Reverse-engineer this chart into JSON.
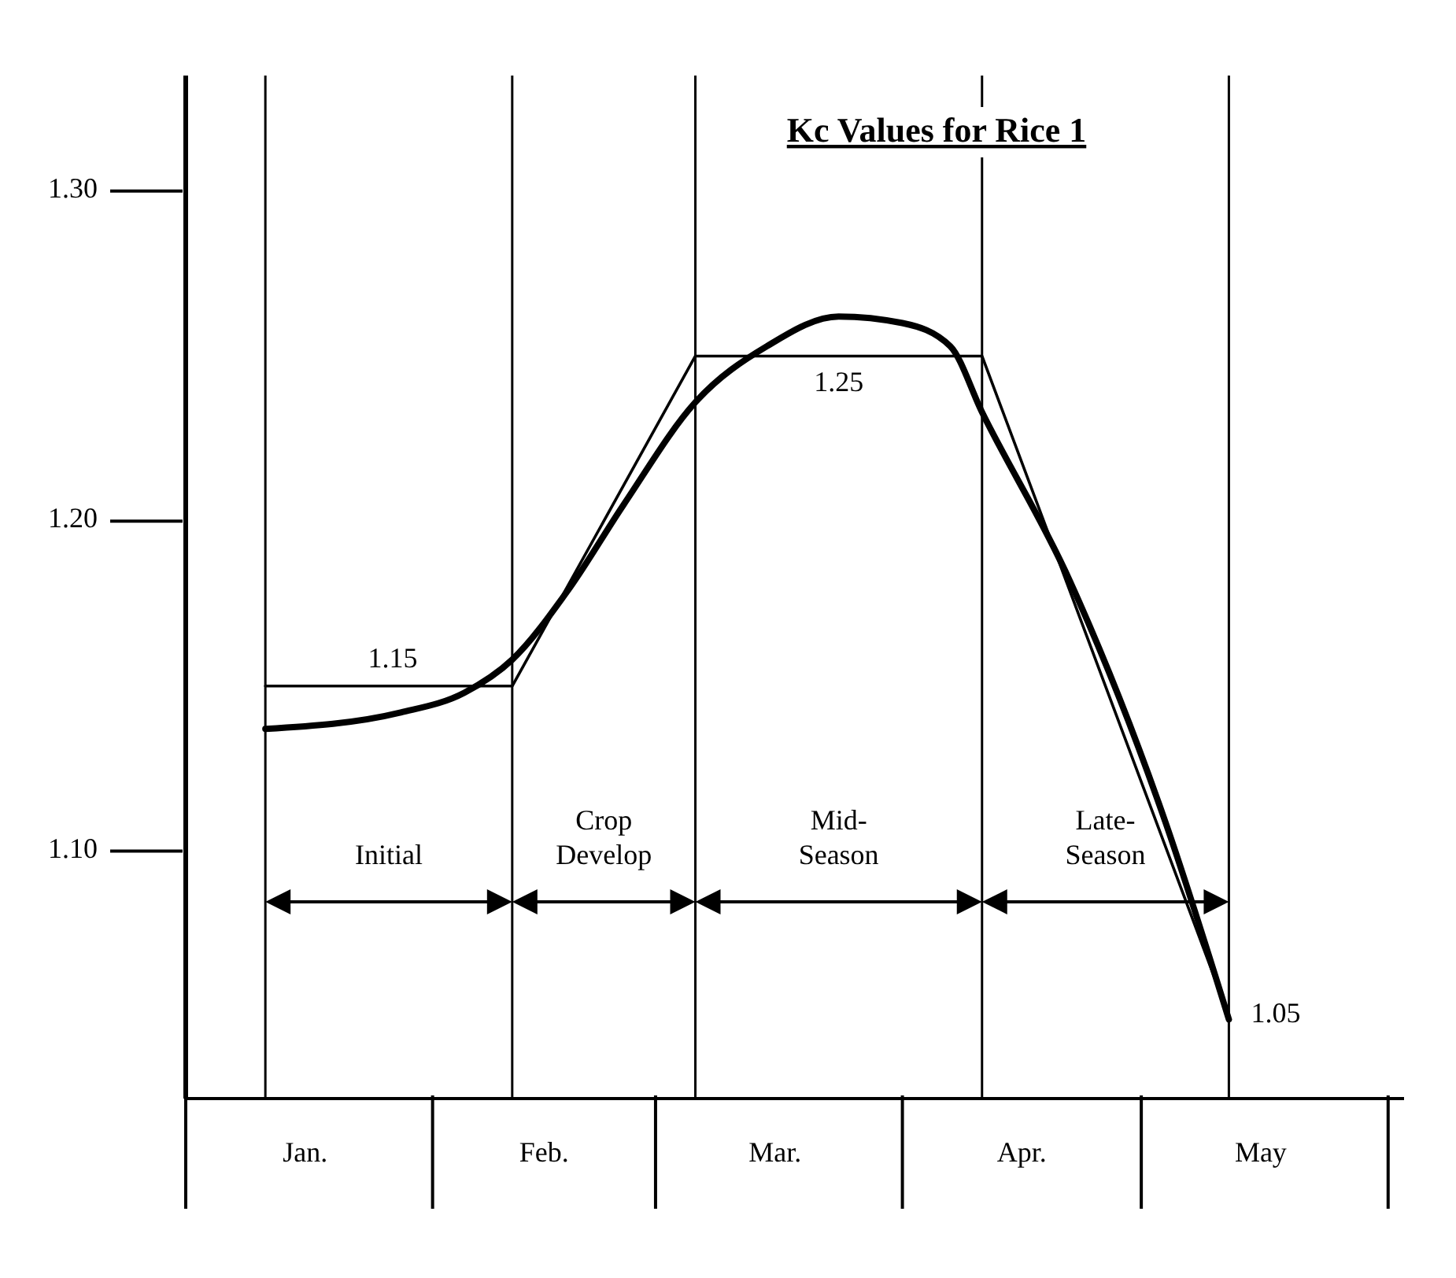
{
  "chart_data": {
    "type": "line",
    "title": "Kc Values for Rice 1",
    "xlim": [
      "--01-01",
      "--06-03"
    ],
    "xticks": [
      {
        "value": "--01-01",
        "label": null
      },
      {
        "value": "--01-16",
        "label": "Jan."
      },
      {
        "value": "--02-01",
        "label": null
      },
      {
        "value": "--02-15",
        "label": "Feb."
      },
      {
        "value": "--03-01",
        "label": null
      },
      {
        "value": "--03-16",
        "label": "Mar."
      },
      {
        "value": "--04-01",
        "label": null
      },
      {
        "value": "--04-16",
        "label": "Apr."
      },
      {
        "value": "--05-01",
        "label": null
      },
      {
        "value": "--05-16",
        "label": "May"
      },
      {
        "value": "--06-01",
        "label": null
      }
    ],
    "ylim": [
      1.025,
      1.335
    ],
    "yticks": [
      {
        "value": 1.1,
        "label": "1.10"
      },
      {
        "value": 1.2,
        "label": "1.20"
      },
      {
        "value": 1.3,
        "label": "1.30"
      }
    ],
    "grid": false,
    "marker": "none",
    "line_style": "solid",
    "series": [
      {
        "type": "line",
        "color": "#000000",
        "x": [
          "--01-11",
          "--02-11",
          "--03-06",
          "--04-11",
          "--05-12"
        ],
        "values": [
          1.15,
          1.15,
          1.25,
          1.25,
          1.05
        ]
      },
      {
        "type": "line",
        "color": "#000000",
        "x": [
          "--01-11",
          "--01-28",
          "--02-05",
          "--02-11",
          "--02-18",
          "--02-25",
          "--03-06",
          "--03-15",
          "--03-24",
          "--04-01",
          "--04-07",
          "--04-11",
          "--04-22",
          "--05-04",
          "--05-12"
        ],
        "values": [
          1.137,
          1.142,
          1.148,
          1.158,
          1.179,
          1.205,
          1.236,
          1.253,
          1.262,
          1.26,
          1.253,
          1.233,
          1.182,
          1.109,
          1.049
        ]
      }
    ],
    "ref_lines": [
      {
        "axis": "x",
        "value": "--01-11",
        "color": "#000000"
      },
      {
        "axis": "x",
        "value": "--02-11",
        "color": "#000000"
      },
      {
        "axis": "x",
        "value": "--03-06",
        "color": "#000000"
      },
      {
        "axis": "x",
        "value": "--04-11",
        "color": "#000000"
      },
      {
        "axis": "x",
        "value": "--05-12",
        "color": "#000000"
      }
    ],
    "annotations": [
      {
        "text": "1.15",
        "x": "--01-27",
        "y": 1.15
      },
      {
        "text": "1.25",
        "x": "--03-24",
        "y": 1.25
      },
      {
        "text": "1.05",
        "x": "--05-12",
        "y": 1.05
      },
      "Initial",
      "Crop Develop",
      "Mid-Season",
      "Late-Season"
    ]
  }
}
